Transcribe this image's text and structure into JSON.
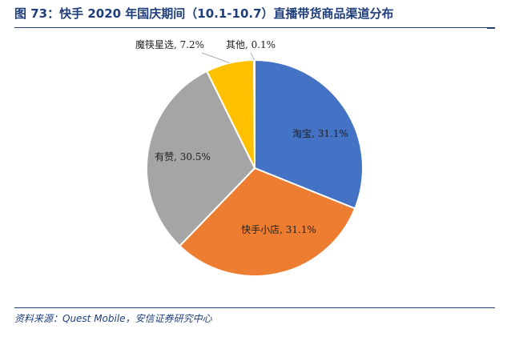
{
  "title": "图 73：快手 2020 年国庆期间（10.1-10.7）直播带货商品渠道分布",
  "source": "资料来源：Quest Mobile，安信证券研究中心",
  "chart_data": {
    "type": "pie",
    "slices": [
      {
        "label": "淘宝",
        "value": 31.1,
        "display": "淘宝, 31.1%",
        "color": "#4472c4"
      },
      {
        "label": "快手小店",
        "value": 31.1,
        "display": "快手小店, 31.1%",
        "color": "#ed7d31"
      },
      {
        "label": "有赞",
        "value": 30.5,
        "display": "有赞, 30.5%",
        "color": "#a5a5a5"
      },
      {
        "label": "魔筷星选",
        "value": 7.2,
        "display": "魔筷星选, 7.2%",
        "color": "#ffc000"
      },
      {
        "label": "其他",
        "value": 0.1,
        "display": "其他, 0.1%",
        "color": "#5b9bd5"
      }
    ],
    "start_angle": "12 o'clock",
    "direction": "clockwise",
    "legend": "none"
  }
}
